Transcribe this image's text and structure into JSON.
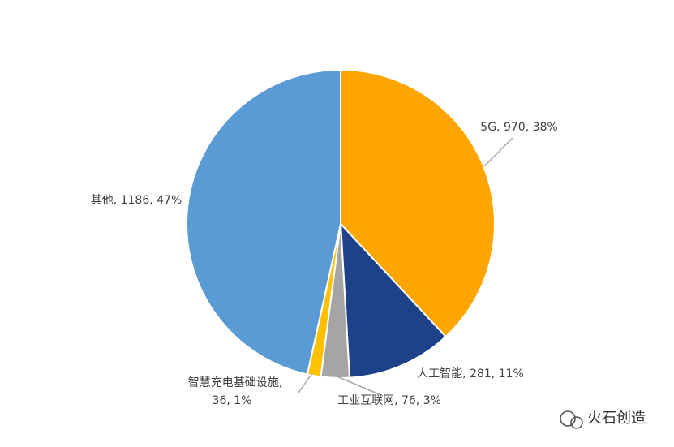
{
  "chart_data": {
    "type": "pie",
    "values": [
      970,
      281,
      76,
      36,
      1186
    ],
    "value_labels": [
      "5G, 970, 38%",
      "人工智能, 281, 11%",
      "工业互联网, 76, 3%",
      [
        "智慧充电基础设施,",
        "36, 1%"
      ],
      "其他, 1186, 47%"
    ],
    "colors": [
      "#ffa500",
      "#1e428a",
      "#a5a5a5",
      "#ffc000",
      "#5b9bd5"
    ],
    "watermark": "火石创造"
  }
}
